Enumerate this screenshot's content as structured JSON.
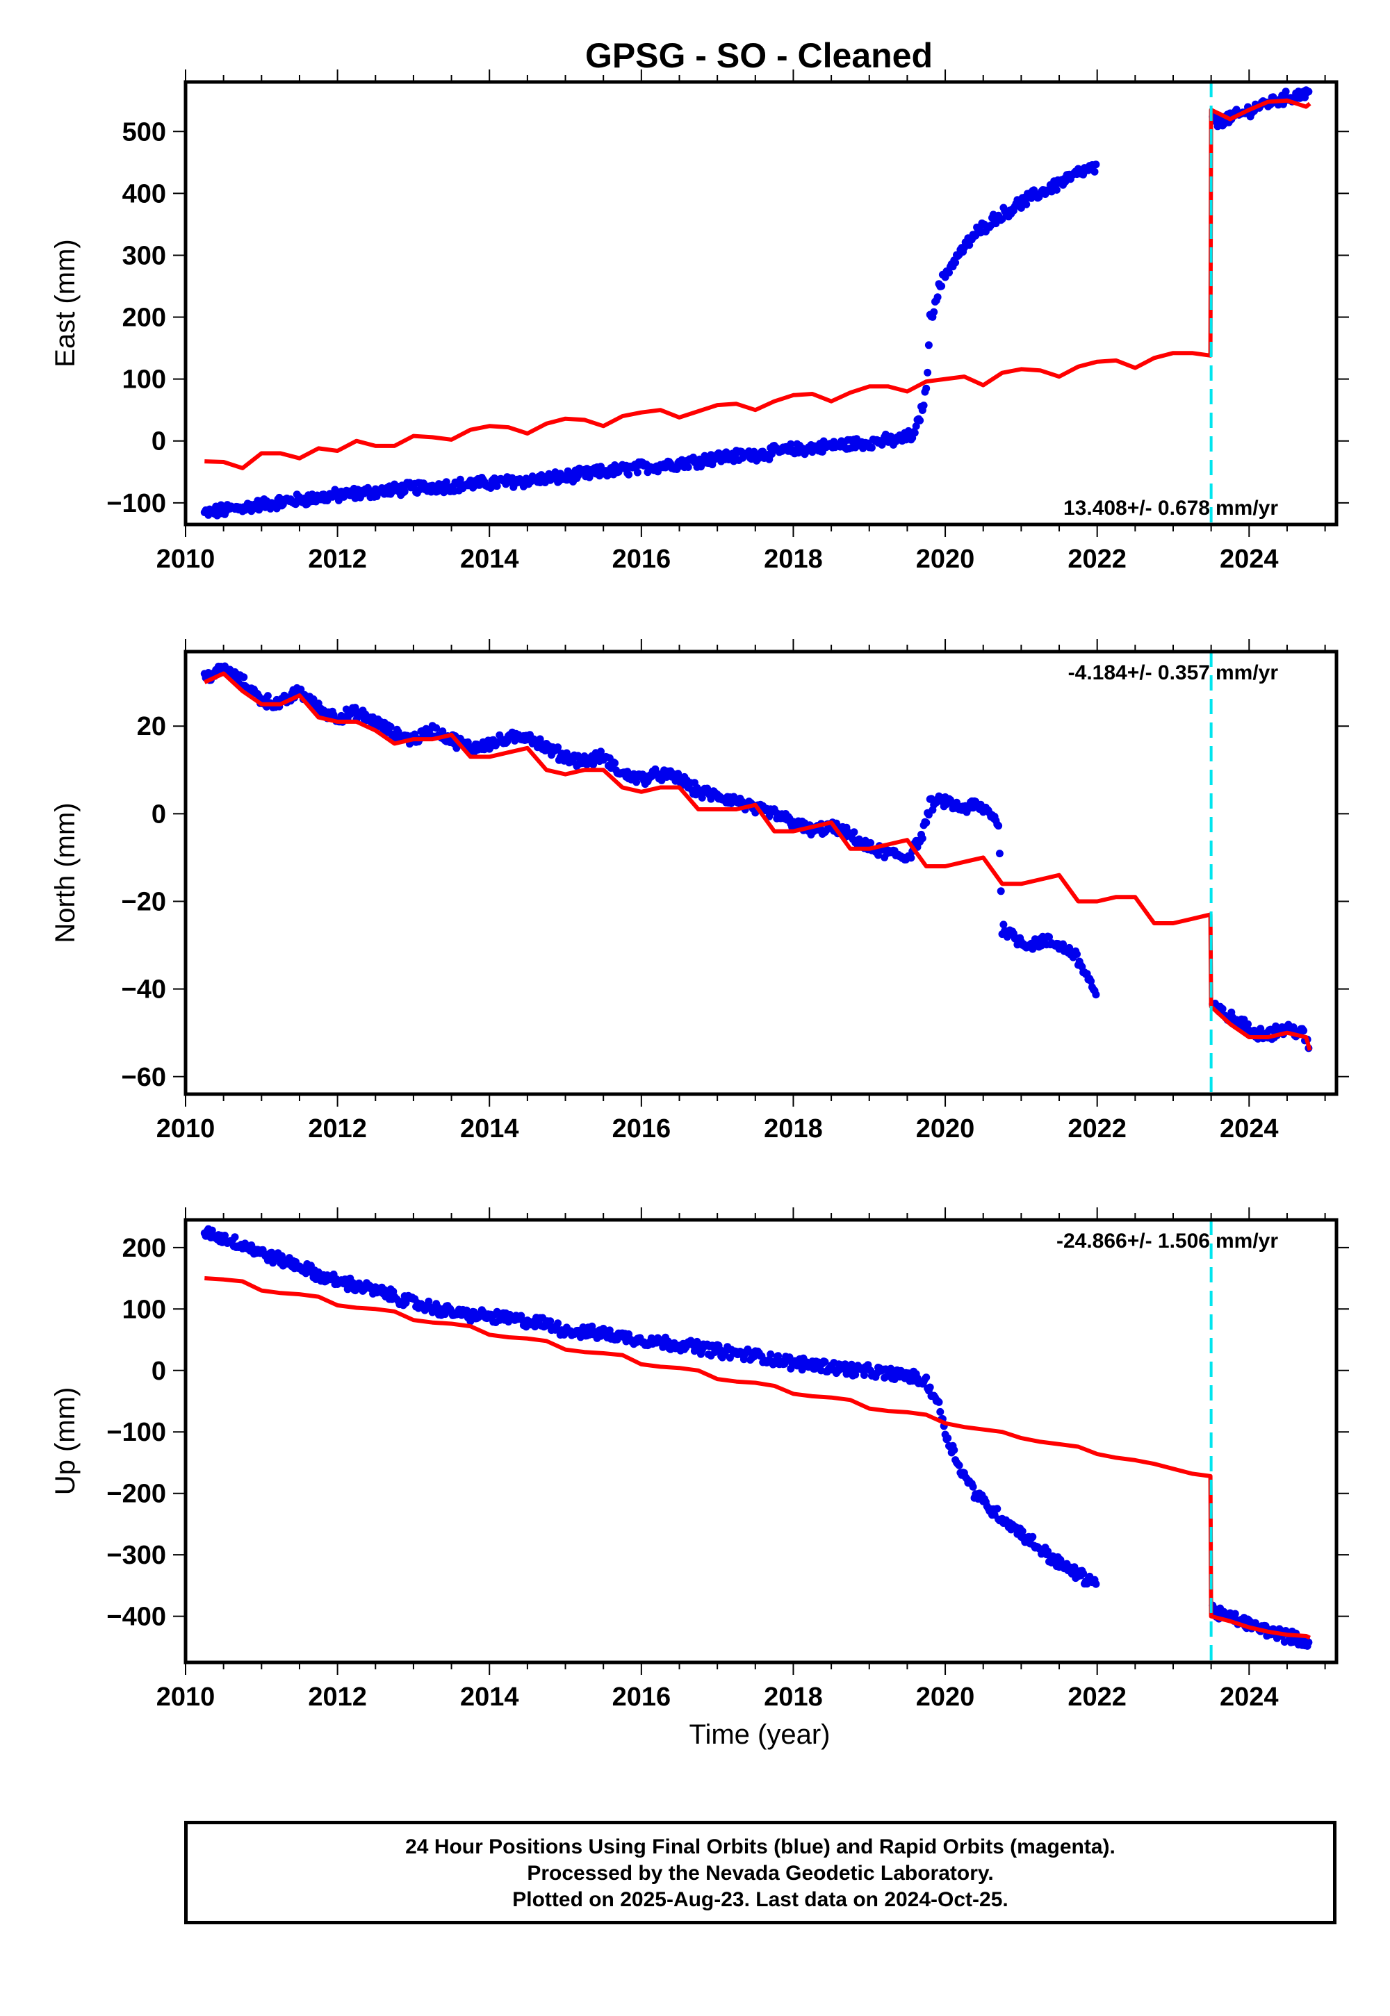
{
  "figure": {
    "title": "GPSG  - SO - Cleaned",
    "xlabel": "Time (year)",
    "colors": {
      "final_orbits": "#0000ee",
      "model": "#ff0000",
      "offset_line": "#00e5ee",
      "frame": "#000000"
    }
  },
  "footer": {
    "line1": "24 Hour Positions Using Final Orbits (blue) and Rapid Orbits (magenta).",
    "line2": "Processed by the Nevada Geodetic Laboratory.",
    "line3": "Plotted on 2025-Aug-23. Last data on 2024-Oct-25."
  },
  "chart_data": [
    {
      "type": "scatter",
      "component": "east",
      "ylabel": "East (mm)",
      "rate_label": "13.408+/- 0.678",
      "rate_unit": "mm/yr",
      "rate_position": "bottom-right",
      "xlim": [
        2010,
        2025.15
      ],
      "ylim": [
        -135,
        580
      ],
      "xticks": [
        "2010",
        "2012",
        "2014",
        "2016",
        "2018",
        "2020",
        "2022",
        "2024"
      ],
      "yticks": [
        "−100",
        "0",
        "100",
        "200",
        "300",
        "400",
        "500"
      ],
      "ytick_values": [
        -100,
        0,
        100,
        200,
        300,
        400,
        500
      ],
      "offset_year": 2023.5,
      "series": [
        {
          "style": "points",
          "x": [
            2010.25,
            2010.5,
            2011.0,
            2011.5,
            2012.0,
            2012.5,
            2013.0,
            2013.5,
            2014.0,
            2014.5,
            2015.0,
            2015.5,
            2016.0,
            2016.5,
            2017.0,
            2017.5,
            2018.0,
            2018.5,
            2019.0,
            2019.4,
            2019.6,
            2019.75,
            2019.8,
            2019.9,
            2020.0,
            2020.2,
            2020.4,
            2020.6,
            2020.8,
            2021.0,
            2021.2,
            2021.4,
            2021.6,
            2021.8,
            2022.0,
            2023.52,
            2023.7,
            2023.9,
            2024.1,
            2024.3,
            2024.5,
            2024.7,
            2024.8
          ],
          "y": [
            -117,
            -112,
            -103,
            -95,
            -88,
            -82,
            -76,
            -72,
            -68,
            -64,
            -58,
            -50,
            -43,
            -36,
            -27,
            -22,
            -14,
            -8,
            -2,
            2,
            10,
            80,
            195,
            240,
            270,
            305,
            335,
            355,
            370,
            385,
            398,
            410,
            423,
            435,
            442,
            515,
            520,
            528,
            540,
            548,
            555,
            560,
            565
          ]
        },
        {
          "style": "line",
          "x": [
            2010.25,
            2010.5,
            2010.75,
            2011.0,
            2011.25,
            2011.5,
            2011.75,
            2012.0,
            2012.25,
            2012.5,
            2012.75,
            2013.0,
            2013.25,
            2013.5,
            2013.75,
            2014.0,
            2014.25,
            2014.5,
            2014.75,
            2015.0,
            2015.25,
            2015.5,
            2015.75,
            2016.0,
            2016.25,
            2016.5,
            2016.75,
            2017.0,
            2017.25,
            2017.5,
            2017.75,
            2018.0,
            2018.25,
            2018.5,
            2018.75,
            2019.0,
            2019.25,
            2019.5,
            2019.75,
            2020.0,
            2020.25,
            2020.5,
            2020.75,
            2021.0,
            2021.25,
            2021.5,
            2021.75,
            2022.0,
            2022.25,
            2022.5,
            2022.75,
            2023.0,
            2023.25,
            2023.49,
            2023.5,
            2023.75,
            2024.0,
            2024.25,
            2024.5,
            2024.75,
            2024.8
          ],
          "y": [
            -33,
            -34,
            -44,
            -20,
            -20,
            -28,
            -12,
            -16,
            0,
            -8,
            -8,
            8,
            6,
            2,
            18,
            24,
            22,
            12,
            28,
            36,
            34,
            24,
            40,
            46,
            50,
            38,
            48,
            58,
            60,
            50,
            64,
            74,
            76,
            64,
            78,
            88,
            88,
            80,
            96,
            100,
            104,
            90,
            110,
            116,
            114,
            104,
            120,
            128,
            130,
            118,
            134,
            142,
            142,
            138,
            535,
            520,
            535,
            548,
            550,
            540,
            545
          ]
        }
      ]
    },
    {
      "type": "scatter",
      "component": "north",
      "ylabel": "North (mm)",
      "rate_label": "-4.184+/- 0.357",
      "rate_unit": "mm/yr",
      "rate_position": "top-right",
      "xlim": [
        2010,
        2025.15
      ],
      "ylim": [
        -64,
        37
      ],
      "xticks": [
        "2010",
        "2012",
        "2014",
        "2016",
        "2018",
        "2020",
        "2022",
        "2024"
      ],
      "yticks": [
        "−60",
        "−40",
        "−20",
        "0",
        "20"
      ],
      "ytick_values": [
        -60,
        -40,
        -20,
        0,
        20
      ],
      "offset_year": 2023.5,
      "series": [
        {
          "style": "points",
          "x": [
            2010.25,
            2010.5,
            2010.75,
            2011.0,
            2011.25,
            2011.5,
            2011.75,
            2012.0,
            2012.25,
            2012.5,
            2012.75,
            2013.0,
            2013.25,
            2013.5,
            2013.75,
            2014.0,
            2014.25,
            2014.5,
            2014.75,
            2015.0,
            2015.25,
            2015.5,
            2015.75,
            2016.0,
            2016.25,
            2016.5,
            2016.75,
            2017.0,
            2017.25,
            2017.5,
            2017.75,
            2018.0,
            2018.25,
            2018.5,
            2018.75,
            2019.0,
            2019.25,
            2019.5,
            2019.7,
            2019.8,
            2020.0,
            2020.2,
            2020.4,
            2020.6,
            2020.7,
            2020.75,
            2020.9,
            2021.1,
            2021.3,
            2021.5,
            2021.7,
            2021.9,
            2022.0,
            2023.52,
            2023.7,
            2023.9,
            2024.1,
            2024.3,
            2024.5,
            2024.7,
            2024.8
          ],
          "y": [
            31,
            33,
            30,
            26,
            25,
            28,
            24,
            22,
            23,
            21,
            18,
            17,
            19,
            17,
            15,
            16,
            17,
            18,
            15,
            13,
            12,
            13,
            9,
            8,
            9,
            8,
            5,
            4,
            3,
            1,
            0,
            -2,
            -4,
            -3,
            -5,
            -8,
            -9,
            -10,
            -5,
            2,
            3,
            1,
            2,
            0,
            -2,
            -26,
            -28,
            -30,
            -29,
            -30,
            -32,
            -38,
            -42,
            -44,
            -46,
            -48,
            -50,
            -50,
            -49,
            -50,
            -54
          ]
        },
        {
          "style": "line",
          "x": [
            2010.25,
            2010.5,
            2010.75,
            2011.0,
            2011.25,
            2011.5,
            2011.75,
            2012.0,
            2012.25,
            2012.5,
            2012.75,
            2013.0,
            2013.25,
            2013.5,
            2013.75,
            2014.0,
            2014.25,
            2014.5,
            2014.75,
            2015.0,
            2015.25,
            2015.5,
            2015.75,
            2016.0,
            2016.25,
            2016.5,
            2016.75,
            2017.0,
            2017.25,
            2017.5,
            2017.75,
            2018.0,
            2018.25,
            2018.5,
            2018.75,
            2019.0,
            2019.25,
            2019.5,
            2019.75,
            2020.0,
            2020.25,
            2020.5,
            2020.75,
            2021.0,
            2021.25,
            2021.5,
            2021.75,
            2022.0,
            2022.25,
            2022.5,
            2022.75,
            2023.0,
            2023.25,
            2023.49,
            2023.5,
            2023.75,
            2024.0,
            2024.25,
            2024.5,
            2024.75,
            2024.8
          ],
          "y": [
            30,
            32,
            28,
            25,
            25,
            27,
            22,
            21,
            21,
            19,
            16,
            17,
            17,
            18,
            13,
            13,
            14,
            15,
            10,
            9,
            10,
            10,
            6,
            5,
            6,
            6,
            1,
            1,
            1,
            2,
            -4,
            -4,
            -3,
            -2,
            -8,
            -8,
            -7,
            -6,
            -12,
            -12,
            -11,
            -10,
            -16,
            -16,
            -15,
            -14,
            -20,
            -20,
            -19,
            -19,
            -25,
            -25,
            -24,
            -23,
            -44,
            -48,
            -51,
            -51,
            -50,
            -51,
            -54
          ]
        }
      ]
    },
    {
      "type": "scatter",
      "component": "up",
      "ylabel": "Up (mm)",
      "rate_label": "-24.866+/- 1.506",
      "rate_unit": "mm/yr",
      "rate_position": "top-right",
      "xlim": [
        2010,
        2025.15
      ],
      "ylim": [
        -475,
        245
      ],
      "xticks": [
        "2010",
        "2012",
        "2014",
        "2016",
        "2018",
        "2020",
        "2022",
        "2024"
      ],
      "yticks": [
        "−400",
        "−300",
        "−200",
        "−100",
        "0",
        "100",
        "200"
      ],
      "ytick_values": [
        -400,
        -300,
        -200,
        -100,
        0,
        100,
        200
      ],
      "offset_year": 2023.5,
      "series": [
        {
          "style": "points",
          "x": [
            2010.25,
            2010.5,
            2010.75,
            2011.0,
            2011.25,
            2011.5,
            2011.75,
            2012.0,
            2012.25,
            2012.5,
            2012.75,
            2013.0,
            2013.25,
            2013.5,
            2013.75,
            2014.0,
            2014.25,
            2014.5,
            2014.75,
            2015.0,
            2015.25,
            2015.5,
            2015.75,
            2016.0,
            2016.25,
            2016.5,
            2016.75,
            2017.0,
            2017.25,
            2017.5,
            2017.75,
            2018.0,
            2018.25,
            2018.5,
            2018.75,
            2019.0,
            2019.25,
            2019.5,
            2019.75,
            2019.9,
            2020.0,
            2020.2,
            2020.4,
            2020.6,
            2020.8,
            2021.0,
            2021.2,
            2021.4,
            2021.6,
            2021.8,
            2022.0,
            2023.52,
            2023.7,
            2023.9,
            2024.1,
            2024.3,
            2024.5,
            2024.7,
            2024.8
          ],
          "y": [
            225,
            215,
            205,
            190,
            180,
            170,
            155,
            145,
            138,
            130,
            120,
            110,
            102,
            95,
            90,
            88,
            84,
            80,
            76,
            65,
            62,
            60,
            55,
            50,
            46,
            42,
            38,
            32,
            28,
            24,
            18,
            12,
            10,
            6,
            2,
            -2,
            -5,
            -8,
            -20,
            -50,
            -100,
            -160,
            -200,
            -225,
            -245,
            -265,
            -285,
            -305,
            -322,
            -335,
            -345,
            -390,
            -400,
            -408,
            -418,
            -425,
            -432,
            -440,
            -445
          ]
        },
        {
          "style": "line",
          "x": [
            2010.25,
            2010.5,
            2010.75,
            2011.0,
            2011.25,
            2011.5,
            2011.75,
            2012.0,
            2012.25,
            2012.5,
            2012.75,
            2013.0,
            2013.25,
            2013.5,
            2013.75,
            2014.0,
            2014.25,
            2014.5,
            2014.75,
            2015.0,
            2015.25,
            2015.5,
            2015.75,
            2016.0,
            2016.25,
            2016.5,
            2016.75,
            2017.0,
            2017.25,
            2017.5,
            2017.75,
            2018.0,
            2018.25,
            2018.5,
            2018.75,
            2019.0,
            2019.25,
            2019.5,
            2019.75,
            2020.0,
            2020.25,
            2020.5,
            2020.75,
            2021.0,
            2021.25,
            2021.5,
            2021.75,
            2022.0,
            2022.25,
            2022.5,
            2022.75,
            2023.0,
            2023.25,
            2023.49,
            2023.5,
            2023.75,
            2024.0,
            2024.25,
            2024.5,
            2024.75,
            2024.8
          ],
          "y": [
            150,
            148,
            145,
            130,
            126,
            124,
            120,
            106,
            102,
            100,
            96,
            82,
            78,
            76,
            72,
            58,
            54,
            52,
            48,
            34,
            30,
            28,
            25,
            10,
            6,
            4,
            0,
            -14,
            -18,
            -20,
            -25,
            -38,
            -42,
            -44,
            -48,
            -62,
            -66,
            -68,
            -72,
            -86,
            -92,
            -96,
            -100,
            -110,
            -116,
            -120,
            -124,
            -136,
            -142,
            -146,
            -152,
            -160,
            -168,
            -172,
            -400,
            -408,
            -418,
            -425,
            -430,
            -432,
            -435
          ]
        }
      ]
    }
  ]
}
